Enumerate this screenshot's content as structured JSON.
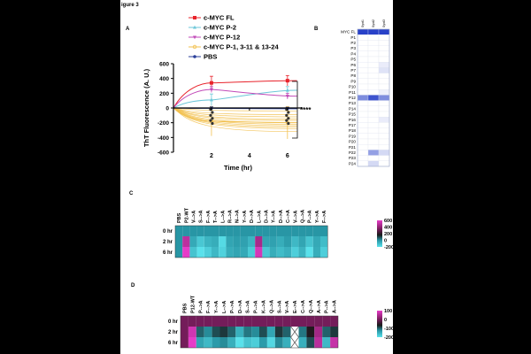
{
  "figure_title": "igure 3",
  "panels": {
    "a": "A",
    "b": "B",
    "c": "C",
    "d": "D"
  },
  "chart_data": {
    "type": "line",
    "ylabel": "ThT Fluorescence (A. U.)",
    "xlabel": "Time (hr)",
    "x_ticks": [
      "2",
      "4",
      "6"
    ],
    "y_ticks": [
      "-600",
      "-400",
      "-200",
      "0",
      "200",
      "400",
      "600"
    ],
    "xlim": [
      0,
      6.8
    ],
    "ylim": [
      -600,
      600
    ],
    "significance": "****",
    "legend": [
      "c-MYC FL",
      "c-MYC P-2",
      "c-MYC P-12",
      "c-MYC P-1, 3-11 & 13-24",
      "PBS"
    ],
    "series": [
      {
        "name": "c-MYC FL",
        "color": "#e8232b",
        "x": [
          0,
          2,
          6
        ],
        "y": [
          0,
          340,
          370
        ],
        "err": [
          0,
          90,
          70
        ]
      },
      {
        "name": "c-MYC P-2",
        "color": "#6cc7d8",
        "x": [
          0,
          2,
          6
        ],
        "y": [
          0,
          110,
          240
        ],
        "err": [
          0,
          80,
          50
        ]
      },
      {
        "name": "c-MYC P-12",
        "color": "#c14ab8",
        "x": [
          0,
          2,
          6
        ],
        "y": [
          0,
          250,
          160
        ],
        "err": [
          0,
          40,
          40
        ]
      },
      {
        "name": "c-MYC P-1, 3-11 & 13-24",
        "color": "#f2c04e",
        "x": [
          0,
          2,
          6
        ],
        "y": [
          0,
          -180,
          -200
        ],
        "err": [
          0,
          200,
          220
        ]
      },
      {
        "name": "PBS",
        "color": "#2a3f9a",
        "x": [
          0,
          2,
          6
        ],
        "y": [
          0,
          -5,
          -10
        ],
        "err": [
          0,
          20,
          20
        ]
      }
    ],
    "extra_yellow_curves": [
      -40,
      -90,
      -120,
      -150,
      -170,
      -200,
      -220,
      -240,
      -260,
      -280,
      -320
    ]
  },
  "panel_b": {
    "columns": [
      "Synt1",
      "Synt2",
      "Synt3"
    ],
    "row_names": [
      "MYC FL",
      "P1",
      "P2",
      "P3",
      "P4",
      "P5",
      "P6",
      "P7",
      "P8",
      "P9",
      "P10",
      "P11",
      "P12",
      "P13",
      "P14",
      "P15",
      "P16",
      "P17",
      "P18",
      "P19",
      "P20",
      "P21",
      "P22",
      "P23",
      "P24"
    ],
    "intensities": [
      [
        1,
        1,
        1
      ],
      [
        0,
        0,
        0
      ],
      [
        0,
        0,
        0
      ],
      [
        0,
        0,
        0
      ],
      [
        0,
        0,
        0
      ],
      [
        0,
        0,
        0
      ],
      [
        0,
        0,
        0.1
      ],
      [
        0,
        0,
        0.15
      ],
      [
        0,
        0,
        0
      ],
      [
        0,
        0,
        0
      ],
      [
        0,
        0,
        0
      ],
      [
        0,
        0,
        0.08
      ],
      [
        0.6,
        0.9,
        0.6
      ],
      [
        0,
        0,
        0
      ],
      [
        0,
        0,
        0
      ],
      [
        0,
        0,
        0
      ],
      [
        0,
        0,
        0.1
      ],
      [
        0,
        0,
        0
      ],
      [
        0,
        0,
        0
      ],
      [
        0,
        0,
        0
      ],
      [
        0,
        0,
        0
      ],
      [
        0,
        0,
        0
      ],
      [
        0,
        0.5,
        0.2
      ],
      [
        0,
        0,
        0
      ],
      [
        0,
        0.2,
        0
      ]
    ]
  },
  "panel_c": {
    "columns": [
      "PBS",
      "P2-WT",
      "V-->A",
      "S-->A",
      "F-->A",
      "T-->A",
      "L-->A",
      "R-->A",
      "N-->A",
      "Y-->A",
      "D-->A",
      "L-->A",
      "D-->A",
      "Y-->A",
      "D-->A",
      "C-->A",
      "V-->A",
      "Q-->A",
      "P-->A",
      "Y-->A",
      "F-->A"
    ],
    "rows": [
      "0 hr",
      "2 hr",
      "6 hr"
    ],
    "values": [
      [
        0,
        0,
        0,
        0,
        0,
        0,
        0,
        0,
        0,
        0,
        0,
        0,
        0,
        0,
        0,
        0,
        0,
        0,
        0,
        0,
        0
      ],
      [
        0,
        500,
        -50,
        -130,
        -80,
        -60,
        -180,
        -40,
        -20,
        -30,
        -80,
        450,
        -40,
        -30,
        -60,
        -20,
        -90,
        -40,
        -120,
        -50,
        -100
      ],
      [
        0,
        600,
        -120,
        -200,
        -150,
        -90,
        -160,
        -60,
        -40,
        -50,
        -140,
        560,
        -130,
        -60,
        -100,
        -70,
        -150,
        -80,
        -200,
        -60,
        -150
      ]
    ],
    "scale": [
      "600",
      "400",
      "200",
      "0",
      "-200"
    ],
    "range": [
      -200,
      600
    ]
  },
  "panel_d": {
    "columns": [
      "PBS",
      "P12-WT",
      "P-->A",
      "F-->A",
      "Y-->A",
      "L-->A",
      "P-->A",
      "D-->A",
      "S-->A",
      "P-->A",
      "K-->A",
      "Q-->A",
      "S-->A",
      "V-->A",
      "E-->A",
      "C-->A",
      "Q-->A",
      "A-->A",
      "P-->A",
      "A-->A"
    ],
    "rows": [
      "0 hr",
      "2 hr",
      "6 hr"
    ],
    "values": [
      [
        0,
        0,
        0,
        0,
        0,
        0,
        0,
        0,
        0,
        0,
        0,
        0,
        0,
        0,
        0,
        0,
        0,
        0,
        0,
        0
      ],
      [
        0,
        80,
        -100,
        -120,
        -90,
        -80,
        -100,
        -150,
        -110,
        -120,
        -90,
        -140,
        -80,
        -100,
        null,
        -110,
        -60,
        40,
        -100,
        -80
      ],
      [
        0,
        100,
        -140,
        -160,
        -130,
        -120,
        -150,
        -200,
        -170,
        -180,
        -130,
        -190,
        -120,
        -150,
        null,
        -150,
        -90,
        60,
        -160,
        70
      ]
    ],
    "scale": [
      "100",
      "0",
      "-100",
      "-200"
    ],
    "range": [
      -200,
      100
    ]
  }
}
